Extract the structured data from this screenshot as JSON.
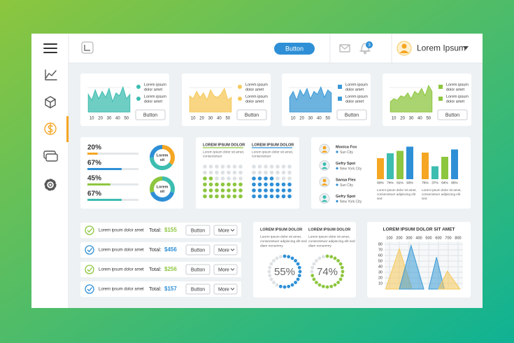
{
  "topbar": {
    "button": "Button",
    "notifications": 3,
    "user": "Lorem Ipsum"
  },
  "mini_charts": {
    "x": [
      6,
      10,
      14,
      18,
      22,
      26,
      30,
      34,
      38,
      42,
      46,
      50,
      54
    ],
    "xlim": [
      5,
      55
    ],
    "ylim": [
      0,
      100
    ],
    "xticks": [
      10,
      20,
      30,
      40,
      50
    ],
    "cards": [
      {
        "color": "#3dbdb0",
        "marker": "circle",
        "values": [
          60,
          40,
          75,
          45,
          70,
          50,
          80,
          35,
          65,
          55,
          85,
          45,
          60
        ],
        "legend": [
          [
            "Lorem ipsum",
            "dolor amet"
          ],
          [
            "Lorem ipsum",
            "dolor amet"
          ]
        ],
        "button": "Button"
      },
      {
        "color": "#f5c85a",
        "marker": "circle",
        "values": [
          55,
          45,
          70,
          50,
          65,
          40,
          75,
          55,
          50,
          60,
          80,
          40,
          50
        ],
        "legend": [
          [
            "Lorem ipsum",
            "dolor amet"
          ],
          [
            "Lorem ipsum",
            "dolor amet"
          ]
        ],
        "button": "Button"
      },
      {
        "color": "#3b9ad6",
        "marker": "square",
        "values": [
          50,
          70,
          40,
          75,
          55,
          80,
          45,
          70,
          60,
          85,
          50,
          75,
          65
        ],
        "legend": [
          [
            "Lorem ipsum",
            "dolor amet"
          ],
          [
            "Lorem ipsum",
            "dolor amet"
          ]
        ],
        "button": "Button"
      },
      {
        "color": "#8dc63f",
        "marker": "square",
        "values": [
          35,
          45,
          40,
          55,
          50,
          65,
          45,
          70,
          60,
          80,
          55,
          90,
          70
        ],
        "legend": [
          [
            "Lorem ipsum",
            "dolor amet"
          ],
          [
            "Lorem ipsum",
            "dolor amet"
          ]
        ],
        "button": "Button"
      }
    ]
  },
  "progress": {
    "values": [
      20,
      67,
      45,
      67
    ],
    "value_labels": [
      "20%",
      "67%",
      "45%",
      "67%"
    ],
    "colors": [
      "#f5a623",
      "#2e8fd6",
      "#8dc63f",
      "#3dbdb0"
    ]
  },
  "donuts": [
    {
      "label": [
        "Lorem",
        "sit"
      ],
      "segments": [
        {
          "color": "#f5a623",
          "value": 35
        },
        {
          "color": "#3dbdb0",
          "value": 40
        },
        {
          "color": "#2e8fd6",
          "value": 25
        }
      ]
    },
    {
      "label": [
        "Lorem",
        "sit"
      ],
      "segments": [
        {
          "color": "#3dbdb0",
          "value": 30
        },
        {
          "color": "#2e8fd6",
          "value": 40
        },
        {
          "color": "#8dc63f",
          "value": 30
        }
      ]
    }
  ],
  "dot_grids": [
    {
      "title": "LOREM IPSUM DOLOR",
      "text": [
        "Lorem ipsum dolor sit amet,",
        "consectetuer"
      ],
      "color": "#8dc63f",
      "filled": 23,
      "total": 42
    },
    {
      "title": "LOREM IPSUM DOLOR",
      "text": [
        "Lorem ipsum dolor sit amet,",
        "consectetuer"
      ],
      "color": "#2e8fd6",
      "filled": 25,
      "total": 42
    }
  ],
  "contacts": [
    {
      "name": "Monica Fox",
      "city": "Sun City"
    },
    {
      "name": "Gefry Spot",
      "city": "New York City"
    },
    {
      "name": "Sansa Flex",
      "city": "Sun City"
    },
    {
      "name": "Gefry Spot",
      "city": "New York City"
    }
  ],
  "bar_groups": {
    "colors": [
      "#f5a623",
      "#3dbdb0",
      "#8dc63f",
      "#2e8fd6"
    ],
    "ylim": [
      0,
      100
    ],
    "groups": [
      {
        "values": [
          60,
          74,
          81,
          93
        ],
        "value_labels": [
          "60%",
          "74%",
          "81%",
          "93%"
        ],
        "text": [
          "Lorem ipsum dolor sit amet,",
          "consectetuer adipiscing elit",
          "sed"
        ]
      },
      {
        "values": [
          76,
          37,
          64,
          85
        ],
        "value_labels": [
          "76%",
          "37%",
          "64%",
          "85%"
        ],
        "text": [
          "Lorem ipsum dolor sit amet,",
          "consectetuer adipiscing elit",
          "sed"
        ]
      }
    ]
  },
  "orders": [
    {
      "text": "Lorem ipsum dolor amet",
      "total_label": "Total:",
      "amount": "$155",
      "color": "#8dc63f",
      "button": "Button",
      "more": "More"
    },
    {
      "text": "Lorem ipsum dolor amet",
      "total_label": "Total:",
      "amount": "$456",
      "color": "#2e8fd6",
      "button": "Button",
      "more": "More"
    },
    {
      "text": "Lorem ipsum dolor amet",
      "total_label": "Total:",
      "amount": "$256",
      "color": "#8dc63f",
      "button": "Button",
      "more": "More"
    },
    {
      "text": "Lorem ipsum dolor amet",
      "total_label": "Total:",
      "amount": "$157",
      "color": "#2e8fd6",
      "button": "Button",
      "more": "More"
    }
  ],
  "gauges": [
    {
      "title": "LOREM IPSUM DOLOR",
      "text": [
        "Lorem ipsum dolor sit amet,",
        "consectetuer adipiscing elit sed",
        "diam nonummy"
      ],
      "value": 55,
      "value_label": "55%",
      "color": "#2e8fd6"
    },
    {
      "title": "LOREM IPSUM DOLOR",
      "text": [
        "Lorem ipsum dolor sit amet,",
        "consectetuer adipiscing elit sed",
        "diam nonummy"
      ],
      "value": 74,
      "value_label": "74%",
      "color": "#8dc63f"
    }
  ],
  "triangle_chart": {
    "title": "LOREM IPSUM DOLOR SIT AMET",
    "xlim": [
      50,
      850
    ],
    "ylim": [
      0,
      85
    ],
    "xticks": [
      100,
      200,
      300,
      400,
      500,
      600,
      700,
      800
    ],
    "yticks": [
      10,
      20,
      30,
      40,
      50,
      60,
      70,
      80
    ],
    "shapes": [
      {
        "color": "#f5c85a",
        "x": [
          60,
          200,
          330
        ],
        "peak": 72
      },
      {
        "color": "#3b9ad6",
        "x": [
          200,
          320,
          450
        ],
        "peak": 78
      },
      {
        "color": "#3b9ad6",
        "x": [
          500,
          580,
          660
        ],
        "peak": 57
      },
      {
        "color": "#f5c85a",
        "x": [
          600,
          690,
          820
        ],
        "peak": 32
      }
    ]
  }
}
